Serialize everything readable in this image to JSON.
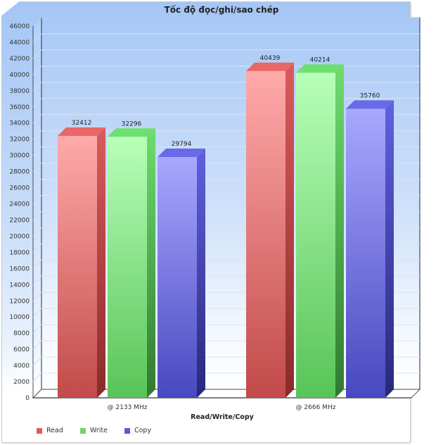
{
  "chart_data": {
    "type": "bar",
    "style": "3d-column",
    "title": "Tốc độ đọc/ghi/sao chép",
    "xlabel": "Read/Write/Copy",
    "ylabel": "",
    "categories": [
      "@ 2133 MHz",
      "@ 2666 MHz"
    ],
    "series": [
      {
        "name": "Read",
        "color": "#d9534f",
        "values": [
          32412,
          40439
        ]
      },
      {
        "name": "Write",
        "color": "#5cb85c",
        "values": [
          32296,
          40214
        ]
      },
      {
        "name": "Copy",
        "color": "#5050cc",
        "values": [
          29794,
          35760
        ]
      }
    ],
    "ylim": [
      0,
      46000
    ],
    "yticks": [
      0,
      2000,
      4000,
      6000,
      8000,
      10000,
      12000,
      14000,
      16000,
      18000,
      20000,
      22000,
      24000,
      26000,
      28000,
      30000,
      32000,
      34000,
      36000,
      38000,
      40000,
      42000,
      44000,
      46000
    ],
    "grid": true,
    "legend_position": "bottom-left",
    "data_labels": true
  },
  "title": "Tốc độ đọc/ghi/sao chép",
  "legend": [
    {
      "label": "Read",
      "color": "#e05a5a"
    },
    {
      "label": "Write",
      "color": "#6bd86b"
    },
    {
      "label": "Copy",
      "color": "#5a5ad8"
    }
  ]
}
